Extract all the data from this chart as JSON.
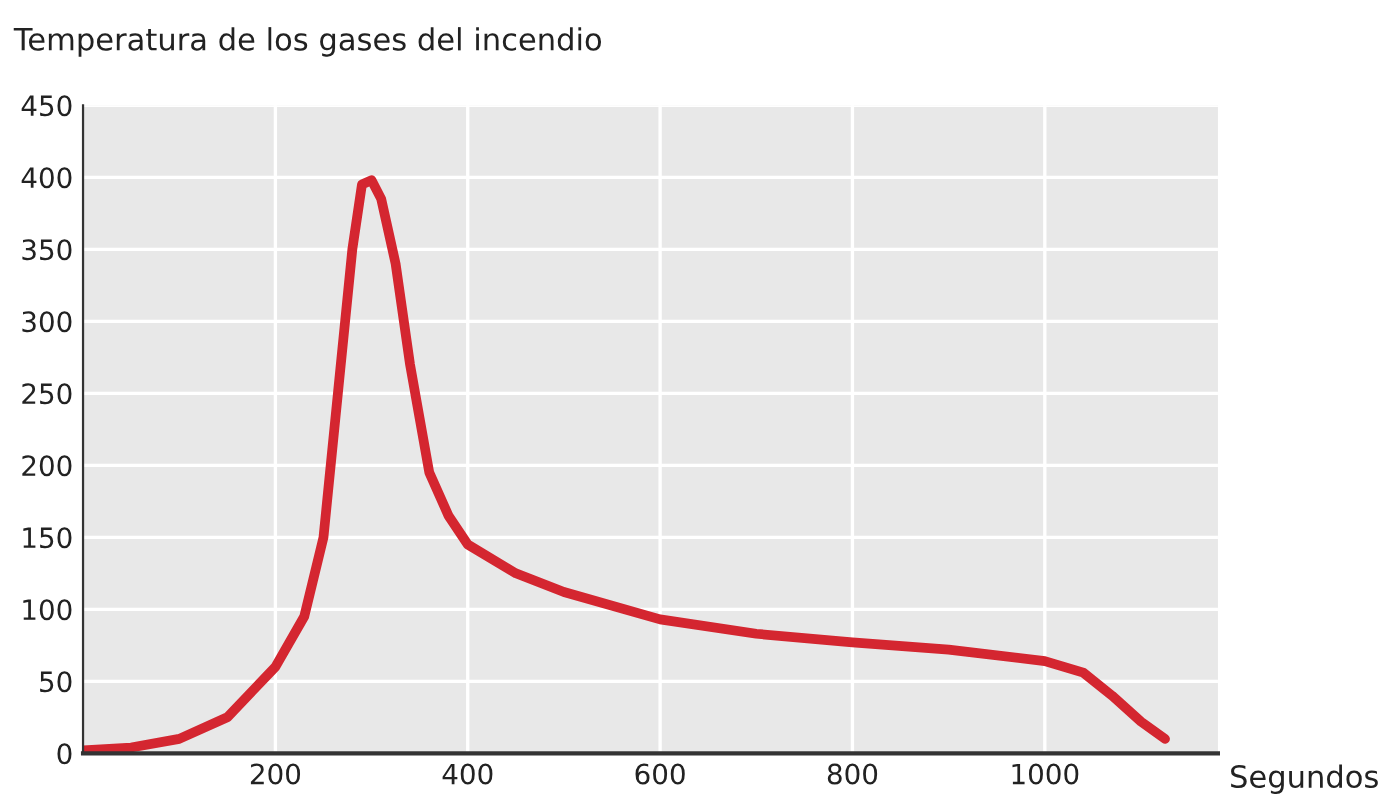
{
  "chart_data": {
    "type": "line",
    "title": "Temperatura de los gases del incendio",
    "xlabel": "Segundos",
    "x": [
      0,
      50,
      100,
      150,
      200,
      230,
      250,
      265,
      280,
      290,
      300,
      310,
      325,
      340,
      360,
      380,
      400,
      450,
      500,
      600,
      700,
      800,
      900,
      1000,
      1040,
      1070,
      1100,
      1125
    ],
    "series": [
      {
        "color": "#d42630",
        "values": [
          2,
          4,
          10,
          25,
          60,
          95,
          150,
          250,
          350,
          395,
          398,
          385,
          340,
          270,
          195,
          165,
          145,
          125,
          112,
          93,
          83,
          77,
          72,
          64,
          56,
          40,
          22,
          10
        ]
      }
    ],
    "xlim": [
      0,
      1180
    ],
    "ylim": [
      0,
      450
    ],
    "xticks": [
      200,
      400,
      600,
      800,
      1000
    ],
    "yticks": [
      0,
      50,
      100,
      150,
      200,
      250,
      300,
      350,
      400,
      450
    ],
    "grid": true,
    "marker": "none",
    "line_style": "solid"
  }
}
